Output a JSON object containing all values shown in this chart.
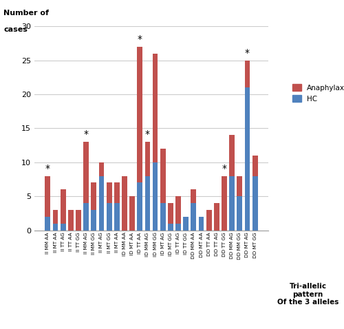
{
  "categories": [
    "II MM AA",
    "II MT AA",
    "II TT AG",
    "II TT AA",
    "II TT GG",
    "II MM AG",
    "II MM GG",
    "II MT AG",
    "II MT GG",
    "II MT AA",
    "ID MM AA",
    "ID MT AA",
    "ID TT AA",
    "ID MM AG",
    "ID MM GG",
    "ID MT AG",
    "ID MT GG",
    "ID TT AG",
    "ID TT GG",
    "DD MM AA",
    "DD MT AA",
    "DD TT AA",
    "DD TT AG",
    "DD TT GG",
    "DD MM AG",
    "DD MM GG",
    "DD MT AG",
    "DD MT GG"
  ],
  "anaphylaxis": [
    8,
    3,
    6,
    3,
    3,
    13,
    7,
    10,
    7,
    7,
    8,
    5,
    27,
    13,
    26,
    12,
    4,
    5,
    2,
    6,
    2,
    3,
    4,
    8,
    14,
    8,
    25,
    11
  ],
  "hc": [
    2,
    1,
    1,
    0,
    0,
    4,
    3,
    8,
    4,
    4,
    0,
    0,
    7,
    8,
    10,
    4,
    1,
    1,
    2,
    4,
    2,
    0,
    0,
    0,
    8,
    5,
    21,
    8
  ],
  "starred_indices": [
    0,
    5,
    12,
    13,
    23,
    26
  ],
  "anaphylaxis_color": "#c0504d",
  "hc_color": "#4f81bd",
  "ylabel_line1": "Number of",
  "ylabel_line2": "cases",
  "xlabel_bottom": "Tri-allelic\npattern\nOf the 3 alleles",
  "ylim": [
    0,
    30
  ],
  "yticks": [
    0,
    5,
    10,
    15,
    20,
    25,
    30
  ],
  "legend_anaphylaxis": "Anaphylaxis",
  "legend_hc": "HC"
}
